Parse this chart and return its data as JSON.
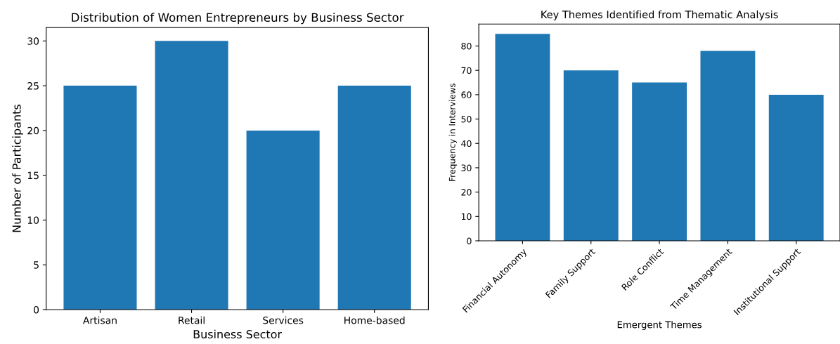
{
  "chart_data": [
    {
      "type": "bar",
      "title": "Distribution of Women Entrepreneurs by Business Sector",
      "xlabel": "Business Sector",
      "ylabel": "Number of Participants",
      "categories": [
        "Artisan",
        "Retail",
        "Services",
        "Home-based"
      ],
      "values": [
        25,
        30,
        20,
        25
      ],
      "color": "#1f77b4",
      "ylim": [
        0,
        31.5
      ],
      "yticks": [
        0,
        5,
        10,
        15,
        20,
        25,
        30
      ],
      "grid": false,
      "legend": false
    },
    {
      "type": "bar",
      "title": "Key Themes Identified from Thematic Analysis",
      "xlabel": "Emergent Themes",
      "ylabel": "Frequency in Interviews",
      "categories": [
        "Financial Autonomy",
        "Family Support",
        "Role Conflict",
        "Time Management",
        "Institutional Support"
      ],
      "values": [
        85,
        70,
        65,
        78,
        60
      ],
      "color": "#1f77b4",
      "ylim": [
        0,
        89
      ],
      "yticks": [
        0,
        10,
        20,
        30,
        40,
        50,
        60,
        70,
        80
      ],
      "grid": false,
      "legend": false
    }
  ]
}
